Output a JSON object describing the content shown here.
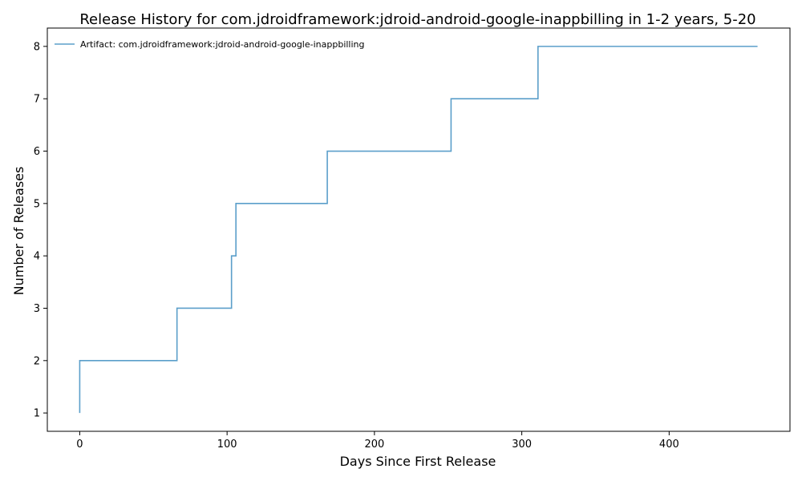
{
  "chart_data": {
    "type": "line",
    "title": "Release History for com.jdroidframework:jdroid-android-google-inappbilling in 1-2 years, 5-20",
    "xlabel": "Days Since First Release",
    "ylabel": "Number of Releases",
    "xlim": [
      -22,
      482
    ],
    "ylim": [
      0.65,
      8.35
    ],
    "x_ticks": [
      0,
      100,
      200,
      300,
      400
    ],
    "y_ticks": [
      1,
      2,
      3,
      4,
      5,
      6,
      7,
      8
    ],
    "grid": false,
    "legend_position": "top-left",
    "series": [
      {
        "name": "Artifact: com.jdroidframework:jdroid-android-google-inappbilling",
        "color": "#5b9fca",
        "step": "post",
        "x": [
          0,
          0,
          66,
          103,
          106,
          168,
          252,
          311,
          460
        ],
        "y": [
          1,
          2,
          3,
          4,
          5,
          6,
          7,
          8,
          8
        ]
      }
    ]
  }
}
